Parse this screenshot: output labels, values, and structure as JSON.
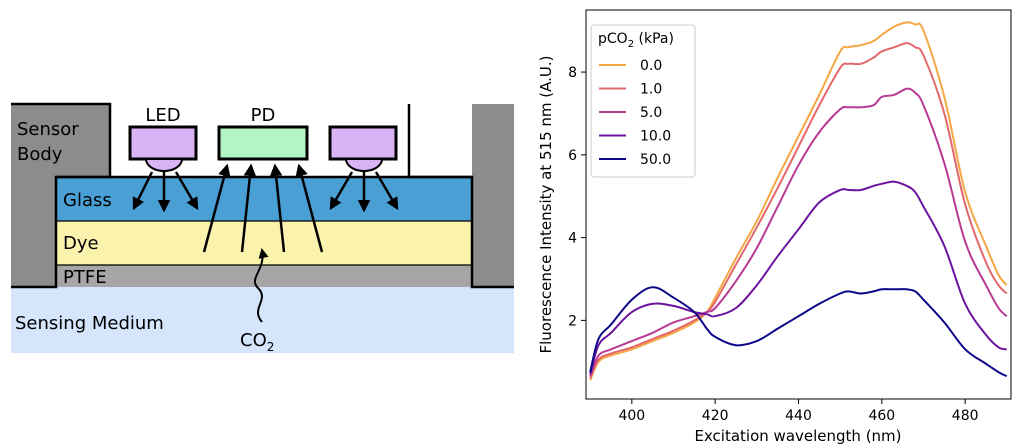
{
  "diagram": {
    "labels": {
      "sensor_body_line1": "Sensor",
      "sensor_body_line2": "Body",
      "led": "LED",
      "pd": "PD",
      "glass": "Glass",
      "dye": "Dye",
      "ptfe": "PTFE",
      "sensing_medium": "Sensing Medium",
      "co2_base": "CO",
      "co2_sub": "2"
    },
    "colors": {
      "sensor_body": "#8c8c8c",
      "led": "#d8b4f6",
      "pd": "#b3f5c4",
      "glass": "#4a9fd4",
      "dye": "#fbf2ae",
      "ptfe": "#a6a6a6",
      "medium": "#d5e5fc"
    }
  },
  "chart_data": {
    "type": "line",
    "xlabel": "Excitation wavelength (nm)",
    "ylabel": "Fluorescence Intensity at 515 nm (A.U.)",
    "xlim": [
      389,
      491
    ],
    "ylim": [
      0.1,
      9.5
    ],
    "xticks": [
      400,
      420,
      440,
      460,
      480
    ],
    "yticks": [
      2,
      4,
      6,
      8
    ],
    "grid": false,
    "legend": {
      "title_base": "pCO",
      "title_sub": "2",
      "title_unit": " (kPa)",
      "placement": "top-left"
    },
    "x": [
      390,
      392,
      395,
      400,
      405,
      410,
      415,
      418,
      420,
      425,
      430,
      435,
      440,
      445,
      450,
      452,
      455,
      458,
      460,
      463,
      466,
      468,
      470,
      475,
      480,
      485,
      488,
      490
    ],
    "series": [
      {
        "name": "0.0",
        "color": "#f4a742",
        "values": [
          0.55,
          1.0,
          1.15,
          1.3,
          1.5,
          1.7,
          1.95,
          2.2,
          2.55,
          3.5,
          4.4,
          5.45,
          6.45,
          7.45,
          8.5,
          8.6,
          8.65,
          8.75,
          8.9,
          9.1,
          9.2,
          9.15,
          9.0,
          7.4,
          5.1,
          3.8,
          3.1,
          2.85
        ]
      },
      {
        "name": "1.0",
        "color": "#e3676b",
        "values": [
          0.6,
          1.05,
          1.2,
          1.35,
          1.55,
          1.75,
          2.0,
          2.2,
          2.45,
          3.35,
          4.25,
          5.2,
          6.2,
          7.2,
          8.1,
          8.2,
          8.2,
          8.35,
          8.5,
          8.6,
          8.7,
          8.6,
          8.4,
          7.0,
          4.8,
          3.4,
          2.85,
          2.65
        ]
      },
      {
        "name": "5.0",
        "color": "#b83a94",
        "values": [
          0.65,
          1.15,
          1.3,
          1.5,
          1.7,
          1.95,
          2.1,
          2.2,
          2.3,
          2.95,
          3.75,
          4.75,
          5.75,
          6.55,
          7.1,
          7.15,
          7.15,
          7.2,
          7.4,
          7.45,
          7.6,
          7.5,
          7.2,
          5.8,
          3.9,
          2.85,
          2.3,
          2.1
        ]
      },
      {
        "name": "10.0",
        "color": "#6c13a0",
        "values": [
          0.7,
          1.4,
          1.7,
          2.2,
          2.4,
          2.35,
          2.2,
          2.15,
          2.1,
          2.3,
          2.85,
          3.55,
          4.2,
          4.85,
          5.15,
          5.15,
          5.15,
          5.25,
          5.3,
          5.35,
          5.25,
          5.1,
          4.75,
          3.8,
          2.4,
          1.65,
          1.35,
          1.3
        ]
      },
      {
        "name": "50.0",
        "color": "#0d0887",
        "values": [
          0.75,
          1.55,
          1.9,
          2.5,
          2.8,
          2.55,
          2.2,
          1.8,
          1.6,
          1.4,
          1.5,
          1.8,
          2.1,
          2.4,
          2.65,
          2.7,
          2.65,
          2.7,
          2.75,
          2.75,
          2.75,
          2.7,
          2.5,
          1.95,
          1.3,
          0.95,
          0.75,
          0.65
        ]
      }
    ]
  }
}
